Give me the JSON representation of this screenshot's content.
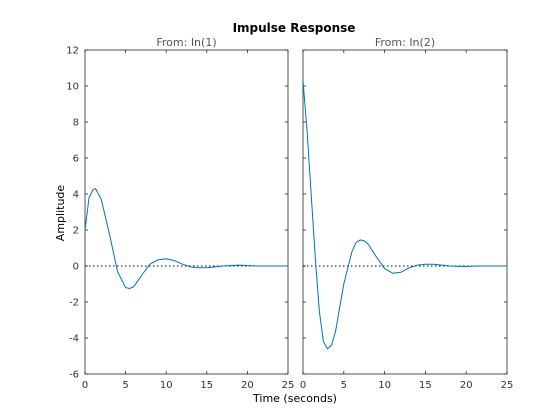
{
  "chart_data": {
    "type": "line",
    "title": "Impulse Response",
    "xlabel": "Time (seconds)",
    "ylabel": "Amplitude",
    "xlim": [
      0,
      25
    ],
    "ylim": [
      -6,
      12
    ],
    "xticks": [
      "0",
      "5",
      "10",
      "15",
      "20",
      "25"
    ],
    "yticks": [
      "-6",
      "-4",
      "-2",
      "0",
      "2",
      "4",
      "6",
      "8",
      "10",
      "12"
    ],
    "grid": false,
    "line_color": "#0072bd",
    "panels": [
      {
        "subtitle": "From: In(1)",
        "series": [
          {
            "x": [
              0,
              0.5,
              1,
              1.3,
              2,
              3,
              4,
              5,
              5.5,
              6,
              7,
              8,
              9,
              10,
              11,
              12,
              13,
              14,
              15,
              16,
              17,
              18,
              19,
              20,
              21,
              22,
              25
            ],
            "y": [
              2.0,
              3.8,
              4.25,
              4.3,
              3.7,
              1.8,
              -0.3,
              -1.2,
              -1.25,
              -1.15,
              -0.5,
              0.1,
              0.35,
              0.4,
              0.3,
              0.1,
              -0.05,
              -0.1,
              -0.1,
              -0.05,
              0.0,
              0.03,
              0.05,
              0.03,
              0.0,
              0.0,
              0.0
            ]
          }
        ]
      },
      {
        "subtitle": "From: In(2)",
        "series": [
          {
            "x": [
              0,
              0.5,
              1,
              1.5,
              2,
              2.5,
              3,
              3.5,
              4,
              5,
              6,
              6.5,
              7,
              7.5,
              8,
              9,
              10,
              11,
              12,
              13,
              14,
              15,
              16,
              17,
              18,
              19,
              20,
              21,
              22,
              25
            ],
            "y": [
              10.3,
              7.5,
              4.0,
              0.5,
              -2.5,
              -4.2,
              -4.6,
              -4.4,
              -3.6,
              -1.0,
              0.8,
              1.3,
              1.45,
              1.4,
              1.2,
              0.5,
              -0.15,
              -0.4,
              -0.35,
              -0.1,
              0.05,
              0.1,
              0.1,
              0.05,
              0.0,
              -0.02,
              -0.03,
              -0.01,
              0.0,
              0.0
            ]
          }
        ]
      }
    ]
  }
}
